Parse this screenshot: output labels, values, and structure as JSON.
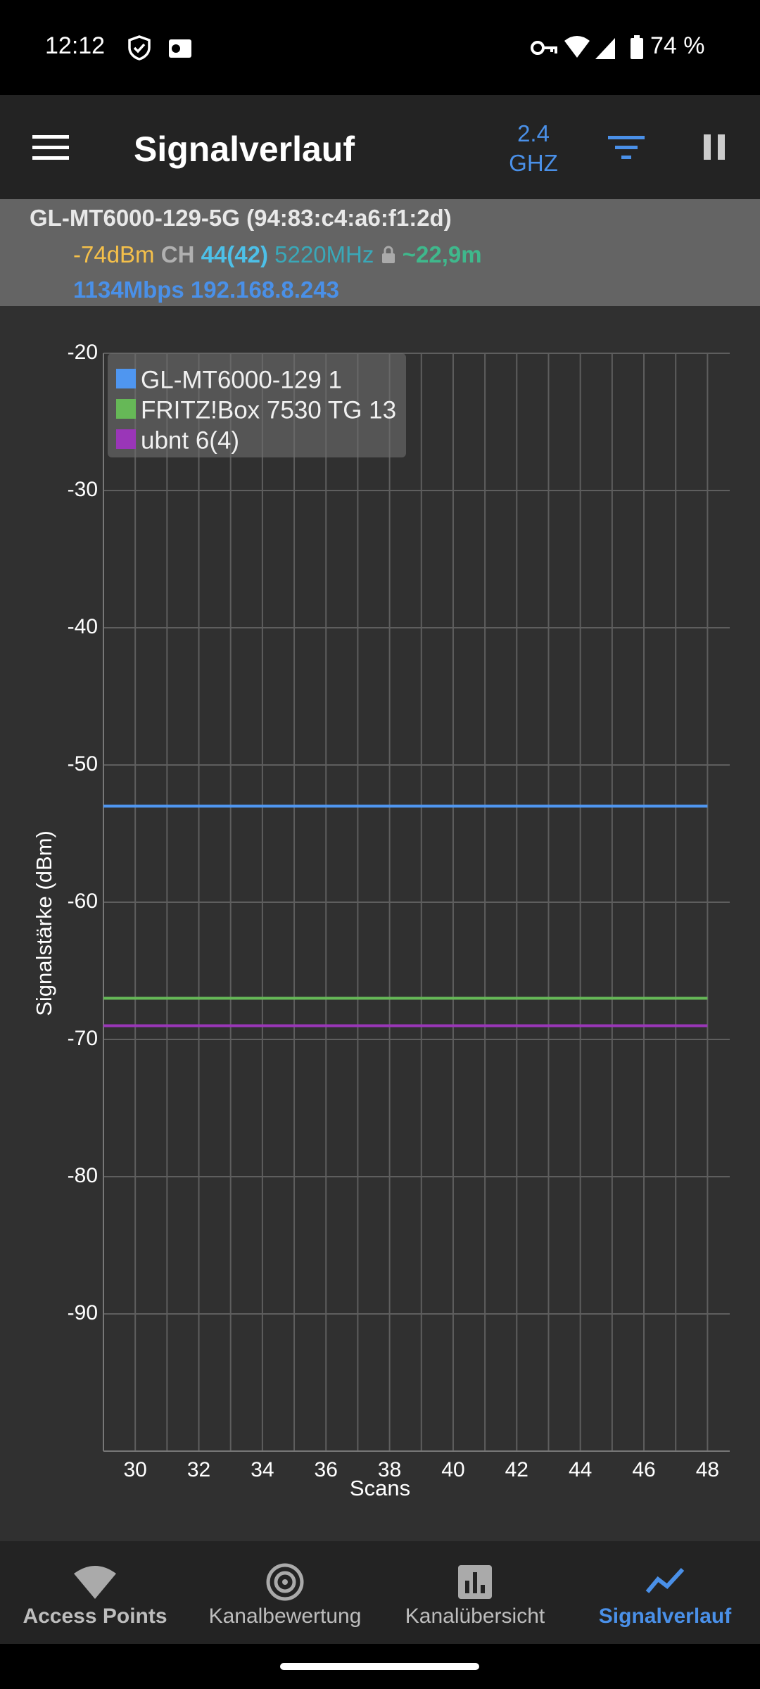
{
  "status_bar": {
    "time": "12:12",
    "battery": "74 %"
  },
  "app_bar": {
    "title": "Signalverlauf",
    "band": "2.4",
    "band_unit": "GHZ"
  },
  "info": {
    "ssid_line": "GL-MT6000-129-5G (94:83:c4:a6:f1:2d)",
    "signal": "-74dBm",
    "channel_label": "CH",
    "channel": "44(42)",
    "frequency": "5220MHz",
    "distance": "~22,9m",
    "rate_ip": "1134Mbps 192.168.8.243"
  },
  "chart_data": {
    "type": "line",
    "y_label": "Signalstärke (dBm)",
    "x_label": "Scans",
    "x": [
      29,
      30,
      31,
      32,
      33,
      34,
      35,
      36,
      37,
      38,
      39,
      40,
      41,
      42,
      43,
      44,
      45,
      46,
      47,
      48
    ],
    "series": [
      {
        "name": "GL-MT6000-129 1",
        "color": "#4f96f0",
        "values": [
          -53,
          -53,
          -53,
          -53,
          -53,
          -53,
          -53,
          -53,
          -53,
          -53,
          -53,
          -53,
          -53,
          -53,
          -53,
          -53,
          -53,
          -53,
          -53,
          -53
        ]
      },
      {
        "name": "FRITZ!Box 7530 TG 13",
        "color": "#66b857",
        "values": [
          -67,
          -67,
          -67,
          -67,
          -67,
          -67,
          -67,
          -67,
          -67,
          -67,
          -67,
          -67,
          -67,
          -67,
          -67,
          -67,
          -67,
          -67,
          -67,
          -67
        ]
      },
      {
        "name": "ubnt 6(4)",
        "color": "#9a36b8",
        "values": [
          -69,
          -69,
          -69,
          -69,
          -69,
          -69,
          -69,
          -69,
          -69,
          -69,
          -69,
          -69,
          -69,
          -69,
          -69,
          -69,
          -69,
          -69,
          -69,
          -69
        ]
      }
    ],
    "ylim": [
      -100,
      -20
    ],
    "yticks": [
      -20,
      -30,
      -40,
      -50,
      -60,
      -70,
      -80,
      -90
    ],
    "xlim": [
      29,
      48.7
    ],
    "xticks": [
      30,
      32,
      34,
      36,
      38,
      40,
      42,
      44,
      46,
      48
    ],
    "grid": true,
    "legend": "top-left"
  },
  "nav": {
    "items": [
      "Access Points",
      "Kanalbewertung",
      "Kanalübersicht",
      "Signalverlauf"
    ]
  }
}
